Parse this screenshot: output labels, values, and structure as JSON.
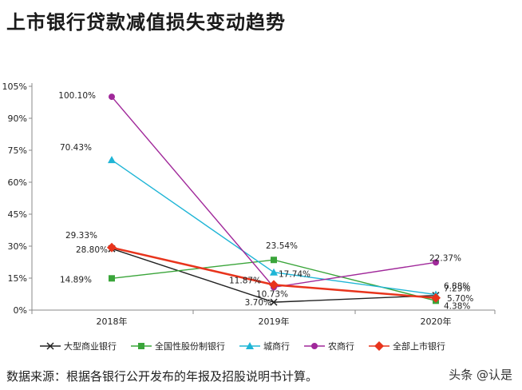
{
  "title": "上市银行贷款减值损失变动趋势",
  "source": "数据来源：根据各银行公开发布的年报及招股说明书计算。",
  "watermark": "头条 @认是",
  "chart_data": {
    "type": "line",
    "categories": [
      "2018年",
      "2019年",
      "2020年"
    ],
    "ylim": [
      0,
      105
    ],
    "yticks": [
      "0%",
      "15%",
      "30%",
      "45%",
      "60%",
      "75%",
      "90%",
      "105%"
    ],
    "ytick_values": [
      0,
      15,
      30,
      45,
      60,
      75,
      90,
      105
    ],
    "grid": false,
    "legend": "bottom",
    "series": [
      {
        "name": "大型商业银行",
        "marker": "x",
        "color": "#222222",
        "values": [
          28.8,
          3.7,
          6.88
        ],
        "labels": [
          "28.80%",
          "3.70%",
          "6.88%"
        ]
      },
      {
        "name": "全国性股份制银行",
        "marker": "square",
        "color": "#3aa53a",
        "values": [
          14.89,
          23.54,
          4.38
        ],
        "labels": [
          "14.89%",
          "23.54%",
          "4.38%"
        ]
      },
      {
        "name": "城商行",
        "marker": "triangle",
        "color": "#1fb5d6",
        "values": [
          70.43,
          17.74,
          7.29
        ],
        "labels": [
          "70.43%",
          "17.74%",
          "7.29%"
        ]
      },
      {
        "name": "农商行",
        "marker": "circle",
        "color": "#a0289a",
        "values": [
          100.1,
          10.73,
          22.37
        ],
        "labels": [
          "100.10%",
          "10.73%",
          "22.37%"
        ]
      },
      {
        "name": "全部上市银行",
        "marker": "diamond",
        "color": "#e8341c",
        "values": [
          29.33,
          11.87,
          5.7
        ],
        "labels": [
          "29.33%",
          "11.87%",
          "5.70%"
        ]
      }
    ]
  }
}
